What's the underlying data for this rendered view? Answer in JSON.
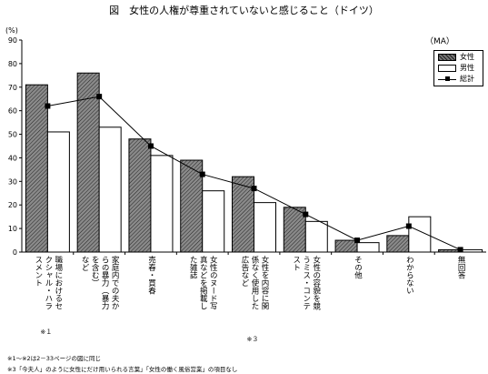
{
  "title": "図　女性の人権が尊重されていないと感じること（ドイツ）",
  "unit_label": "(%)",
  "ma_label": "（MA）",
  "legend": {
    "female": "女性",
    "male": "男性",
    "total": "総計"
  },
  "chart_data": {
    "type": "bar",
    "categories": [
      [
        "職場におけるセ",
        "クシャル・ハラ",
        "スメント"
      ],
      [
        "家庭内での夫か",
        "らの暴力（暴力",
        "を含む）",
        "など"
      ],
      [
        "売春・買春"
      ],
      [
        "女性のヌード写",
        "真などを掲載し",
        "た雑誌"
      ],
      [
        "女性を内容に関",
        "係なく使用した",
        "広告など"
      ],
      [
        "女性の容貌を競",
        "うミス・コンテ",
        "スト"
      ],
      [
        "その他"
      ],
      [
        "わからない"
      ],
      [
        "無回答"
      ]
    ],
    "series": [
      {
        "name": "女性",
        "kind": "bar",
        "values": [
          71,
          76,
          48,
          39,
          32,
          19,
          5,
          7,
          1
        ]
      },
      {
        "name": "男性",
        "kind": "bar",
        "values": [
          51,
          53,
          41,
          26,
          21,
          13,
          4,
          15,
          1
        ]
      },
      {
        "name": "総計",
        "kind": "line",
        "values": [
          62,
          66,
          45,
          33,
          27,
          16,
          5,
          11,
          1
        ]
      }
    ],
    "ylim": [
      0,
      90
    ],
    "yticks": [
      0,
      10,
      20,
      30,
      40,
      50,
      60,
      70,
      80,
      90
    ],
    "ylabel": "(%)"
  },
  "annotations": {
    "cat0_mark": "※１",
    "cat4_mark": "※３"
  },
  "footnotes": [
    "※1〜※2は2－33ページの図に同じ",
    "※3「今夫人」のように女性にだけ用いられる言葉」「女性の働く風俗営業」の項目なし"
  ],
  "colors": {
    "female_fill": "#777777",
    "male_fill": "#ffffff",
    "line": "#000000"
  }
}
